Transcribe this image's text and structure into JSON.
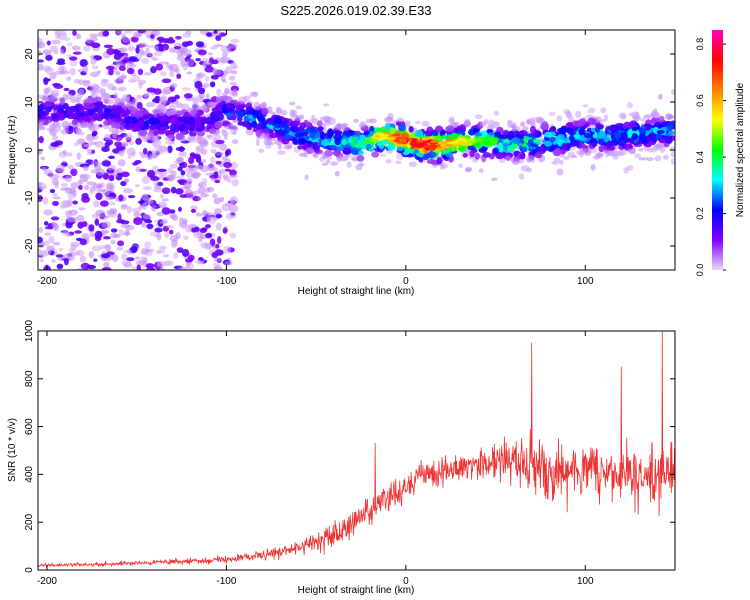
{
  "title": "S225.2026.019.02.39.E33",
  "colors": {
    "line": "#ee3333",
    "axis": "#000000"
  },
  "chart_data": [
    {
      "type": "heatmap",
      "xlabel": "Height of straight line (km)",
      "ylabel": "Frequency (Hz)",
      "xlim": [
        -205,
        150
      ],
      "ylim": [
        -25,
        25
      ],
      "xticks": [
        -200,
        -100,
        0,
        100
      ],
      "yticks": [
        -20,
        -10,
        0,
        10,
        20
      ],
      "colorbar": {
        "label": "Normalized spectral amplitude",
        "range": [
          0,
          0.85
        ],
        "ticks": [
          0.0,
          0.2,
          0.4,
          0.6,
          0.8
        ],
        "colors": [
          "#e8d8f8",
          "#8000ff",
          "#0000ff",
          "#00ffff",
          "#00ff00",
          "#ffff00",
          "#ff8000",
          "#ff0000",
          "#ff00c0"
        ]
      },
      "ridge": {
        "x": [
          -205,
          -170,
          -150,
          -130,
          -110,
          -100,
          -80,
          -60,
          -40,
          -25,
          -15,
          0,
          10,
          20,
          40,
          60,
          80,
          100,
          120,
          150
        ],
        "freq": [
          8,
          8,
          6,
          5,
          6,
          8,
          6,
          3,
          2,
          1,
          3,
          2,
          1,
          1,
          2,
          1,
          2,
          3,
          3,
          4
        ],
        "peak_amplitude": [
          0.2,
          0.2,
          0.2,
          0.2,
          0.2,
          0.25,
          0.3,
          0.3,
          0.35,
          0.45,
          0.6,
          0.8,
          0.82,
          0.7,
          0.5,
          0.4,
          0.4,
          0.35,
          0.35,
          0.3
        ]
      }
    },
    {
      "type": "line",
      "xlabel": "Height of straight line (km)",
      "ylabel": "SNR (10 * v/v)",
      "xlim": [
        -205,
        150
      ],
      "ylim": [
        0,
        1000
      ],
      "xticks": [
        -200,
        -100,
        0,
        100
      ],
      "yticks": [
        0,
        200,
        400,
        600,
        800,
        1000
      ],
      "envelope": {
        "x": [
          -205,
          -180,
          -150,
          -120,
          -100,
          -80,
          -60,
          -50,
          -40,
          -30,
          -20,
          -10,
          0,
          10,
          20,
          30,
          40,
          50,
          60,
          70,
          80,
          90,
          100,
          110,
          120,
          130,
          140,
          150
        ],
        "mean": [
          20,
          22,
          28,
          35,
          45,
          60,
          90,
          120,
          150,
          190,
          240,
          300,
          350,
          390,
          410,
          430,
          450,
          460,
          455,
          430,
          420,
          410,
          420,
          420,
          410,
          400,
          380,
          420
        ],
        "spread": [
          12,
          12,
          15,
          18,
          22,
          30,
          50,
          70,
          90,
          110,
          120,
          110,
          90,
          90,
          90,
          100,
          100,
          110,
          150,
          220,
          200,
          160,
          160,
          150,
          160,
          170,
          200,
          200
        ]
      },
      "spikes": [
        {
          "x": -17,
          "y": 530
        },
        {
          "x": 70,
          "y": 950
        },
        {
          "x": 120,
          "y": 850
        },
        {
          "x": 143,
          "y": 1000
        }
      ]
    }
  ]
}
